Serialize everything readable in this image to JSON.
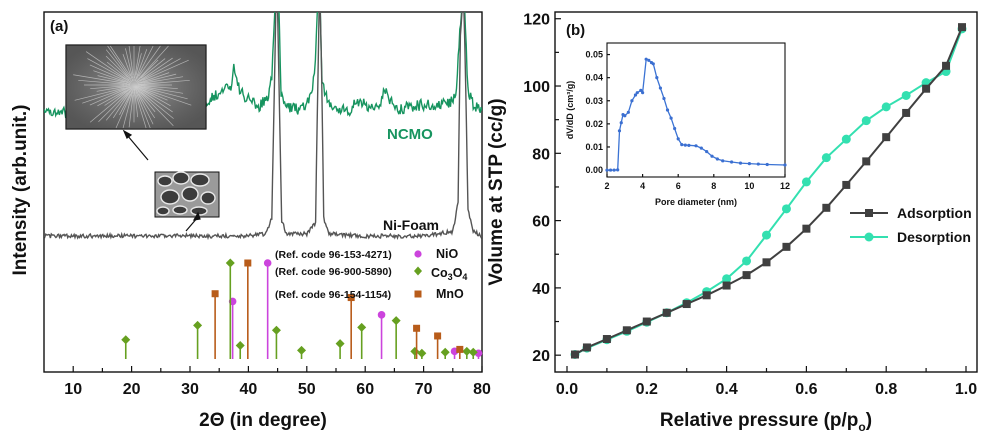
{
  "chart_data": [
    {
      "type": "line",
      "panel_label": "(a)",
      "xlabel": "2Θ (in degree)",
      "ylabel": "Intensity (arb.unit.)",
      "xlim": [
        5,
        80
      ],
      "xticks": [
        10,
        20,
        30,
        40,
        50,
        60,
        70,
        80
      ],
      "y_ticks_shown": false,
      "series": [
        {
          "name": "NCMO",
          "color": "#17945f",
          "x": [
            5,
            20,
            30,
            33,
            35.5,
            37.0,
            37.5,
            38.5,
            40,
            42,
            43.3,
            44.0,
            44.5,
            44.7,
            44.9,
            45.0,
            45.2,
            45.6,
            46.5,
            48,
            50,
            51.3,
            51.8,
            52.0,
            52.3,
            52.6,
            53.5,
            55,
            57.5,
            59,
            60.5,
            62.5,
            63.3,
            64.5,
            66,
            70,
            74,
            75.5,
            76.2,
            76.6,
            77.0,
            77.6,
            78.5,
            80
          ],
          "y": [
            0.32,
            0.33,
            0.36,
            0.4,
            0.46,
            0.5,
            0.61,
            0.46,
            0.4,
            0.36,
            0.42,
            0.55,
            0.96,
            1.02,
            1.02,
            1.02,
            1.02,
            0.42,
            0.37,
            0.34,
            0.36,
            0.55,
            0.97,
            1.02,
            1.02,
            0.5,
            0.4,
            0.34,
            0.34,
            0.4,
            0.36,
            0.38,
            0.48,
            0.38,
            0.34,
            0.37,
            0.37,
            0.42,
            0.82,
            1.02,
            1.02,
            0.45,
            0.37,
            0.33
          ]
        },
        {
          "name": "Ni-Foam",
          "color": "#555555",
          "x": [
            5,
            10,
            20,
            30,
            40,
            43,
            44.0,
            44.4,
            44.7,
            44.9,
            45.0,
            45.3,
            45.7,
            46.5,
            50,
            51.5,
            51.9,
            52.1,
            52.3,
            52.5,
            52.9,
            53.8,
            60,
            70,
            75,
            75.9,
            76.3,
            76.6,
            76.9,
            77.2,
            77.6,
            78.5,
            80
          ],
          "y": [
            0.0,
            0.0,
            0.0,
            0.0,
            0.0,
            0.01,
            0.08,
            0.6,
            1.02,
            1.02,
            1.02,
            0.6,
            0.07,
            0.01,
            0.01,
            0.06,
            0.7,
            1.02,
            1.02,
            0.8,
            0.08,
            0.01,
            0.0,
            0.0,
            0.02,
            0.15,
            0.9,
            1.02,
            1.02,
            0.7,
            0.12,
            0.02,
            0.0
          ]
        }
      ],
      "reference_stems": [
        {
          "name": "NiO",
          "ref_code": "(Ref. code 96-153-4271)",
          "marker": "circle",
          "color": "#cc44dd",
          "positions": [
            37.3,
            43.3,
            62.8,
            75.3,
            79.4
          ],
          "intensities": [
            60,
            100,
            46,
            8,
            6
          ]
        },
        {
          "name": "Co3O4",
          "name_main": "Co",
          "name_sub1": "3",
          "name_mid": "O",
          "name_sub2": "4",
          "ref_code": "(Ref. code 96-900-5890)",
          "marker": "diamond",
          "color": "#66a020",
          "positions": [
            19.0,
            31.3,
            36.9,
            38.6,
            44.8,
            49.1,
            55.7,
            59.4,
            65.3,
            68.5,
            69.7,
            73.7,
            77.4,
            78.5
          ],
          "intensities": [
            20,
            35,
            100,
            14,
            30,
            9,
            16,
            33,
            40,
            8,
            6,
            7,
            8,
            7
          ]
        },
        {
          "name": "MnO",
          "ref_code": "(Ref. code 96-154-1154)",
          "marker": "square",
          "color": "#b85c1a",
          "positions": [
            34.3,
            39.9,
            57.6,
            68.8,
            72.4,
            76.2
          ],
          "intensities": [
            68,
            100,
            64,
            32,
            24,
            10
          ]
        }
      ]
    },
    {
      "type": "line",
      "panel_label": "(b)",
      "xlabel": "Relative pressure (p/p",
      "xlabel_sub": "o",
      "xlabel_close": ")",
      "ylabel": "Volume at STP (cc/g)",
      "xlim": [
        0.0,
        1.0
      ],
      "ylim": [
        15,
        122
      ],
      "xticks": [
        0.0,
        0.2,
        0.4,
        0.6,
        0.8,
        1.0
      ],
      "yticks": [
        20,
        40,
        60,
        80,
        100,
        120
      ],
      "legend_position": "center-right",
      "series": [
        {
          "name": "Adsorption",
          "color": "#404040",
          "marker": "square",
          "x": [
            0.02,
            0.05,
            0.1,
            0.15,
            0.2,
            0.25,
            0.3,
            0.35,
            0.4,
            0.45,
            0.5,
            0.55,
            0.6,
            0.65,
            0.7,
            0.75,
            0.8,
            0.85,
            0.9,
            0.95,
            0.99
          ],
          "y": [
            20.2,
            22.3,
            24.8,
            27.4,
            30.0,
            32.6,
            35.2,
            37.8,
            40.7,
            43.8,
            47.6,
            52.2,
            57.6,
            63.8,
            70.6,
            77.6,
            84.8,
            92.0,
            99.2,
            106.0,
            117.5
          ]
        },
        {
          "name": "Desorption",
          "color": "#33e0b0",
          "marker": "circle",
          "x": [
            0.02,
            0.05,
            0.1,
            0.15,
            0.2,
            0.25,
            0.3,
            0.35,
            0.4,
            0.45,
            0.5,
            0.55,
            0.6,
            0.65,
            0.7,
            0.75,
            0.8,
            0.85,
            0.9,
            0.95,
            0.99
          ],
          "y": [
            20.2,
            22.1,
            24.6,
            27.1,
            29.8,
            32.6,
            35.6,
            38.9,
            42.7,
            48.0,
            55.7,
            63.5,
            71.5,
            78.7,
            84.2,
            89.7,
            93.8,
            97.2,
            101.0,
            104.3,
            117.0
          ]
        }
      ],
      "inset": {
        "type": "line",
        "xlabel": "Pore diameter (nm)",
        "ylabel": "dV/dD (cm³/g)",
        "xlim": [
          2,
          12
        ],
        "ylim": [
          -0.003,
          0.055
        ],
        "xticks": [
          2,
          4,
          6,
          8,
          10,
          12
        ],
        "yticks": [
          "0.00",
          "0.01",
          "0.02",
          "0.03",
          "0.04",
          "0.05"
        ],
        "color": "#3b73d4",
        "marker_color": "#3b6fd1",
        "x": [
          2.0,
          2.2,
          2.4,
          2.6,
          2.7,
          2.8,
          2.9,
          3.0,
          3.2,
          3.4,
          3.6,
          3.7,
          3.9,
          4.0,
          4.2,
          4.35,
          4.5,
          4.6,
          4.8,
          5.0,
          5.2,
          5.4,
          5.6,
          5.8,
          6.0,
          6.2,
          6.4,
          6.6,
          7.0,
          7.3,
          7.6,
          7.9,
          8.2,
          8.5,
          9.0,
          9.5,
          10.0,
          10.5,
          11.0,
          12.0
        ],
        "y": [
          0.0,
          0.0,
          0.0,
          0.0001,
          0.017,
          0.0205,
          0.024,
          0.0235,
          0.025,
          0.03,
          0.0325,
          0.0335,
          0.0345,
          0.0335,
          0.048,
          0.0475,
          0.0465,
          0.046,
          0.04,
          0.0355,
          0.031,
          0.026,
          0.0225,
          0.018,
          0.0135,
          0.011,
          0.0108,
          0.0107,
          0.0105,
          0.0095,
          0.008,
          0.006,
          0.0048,
          0.004,
          0.0035,
          0.003,
          0.0028,
          0.0026,
          0.0024,
          0.0022
        ]
      }
    }
  ]
}
